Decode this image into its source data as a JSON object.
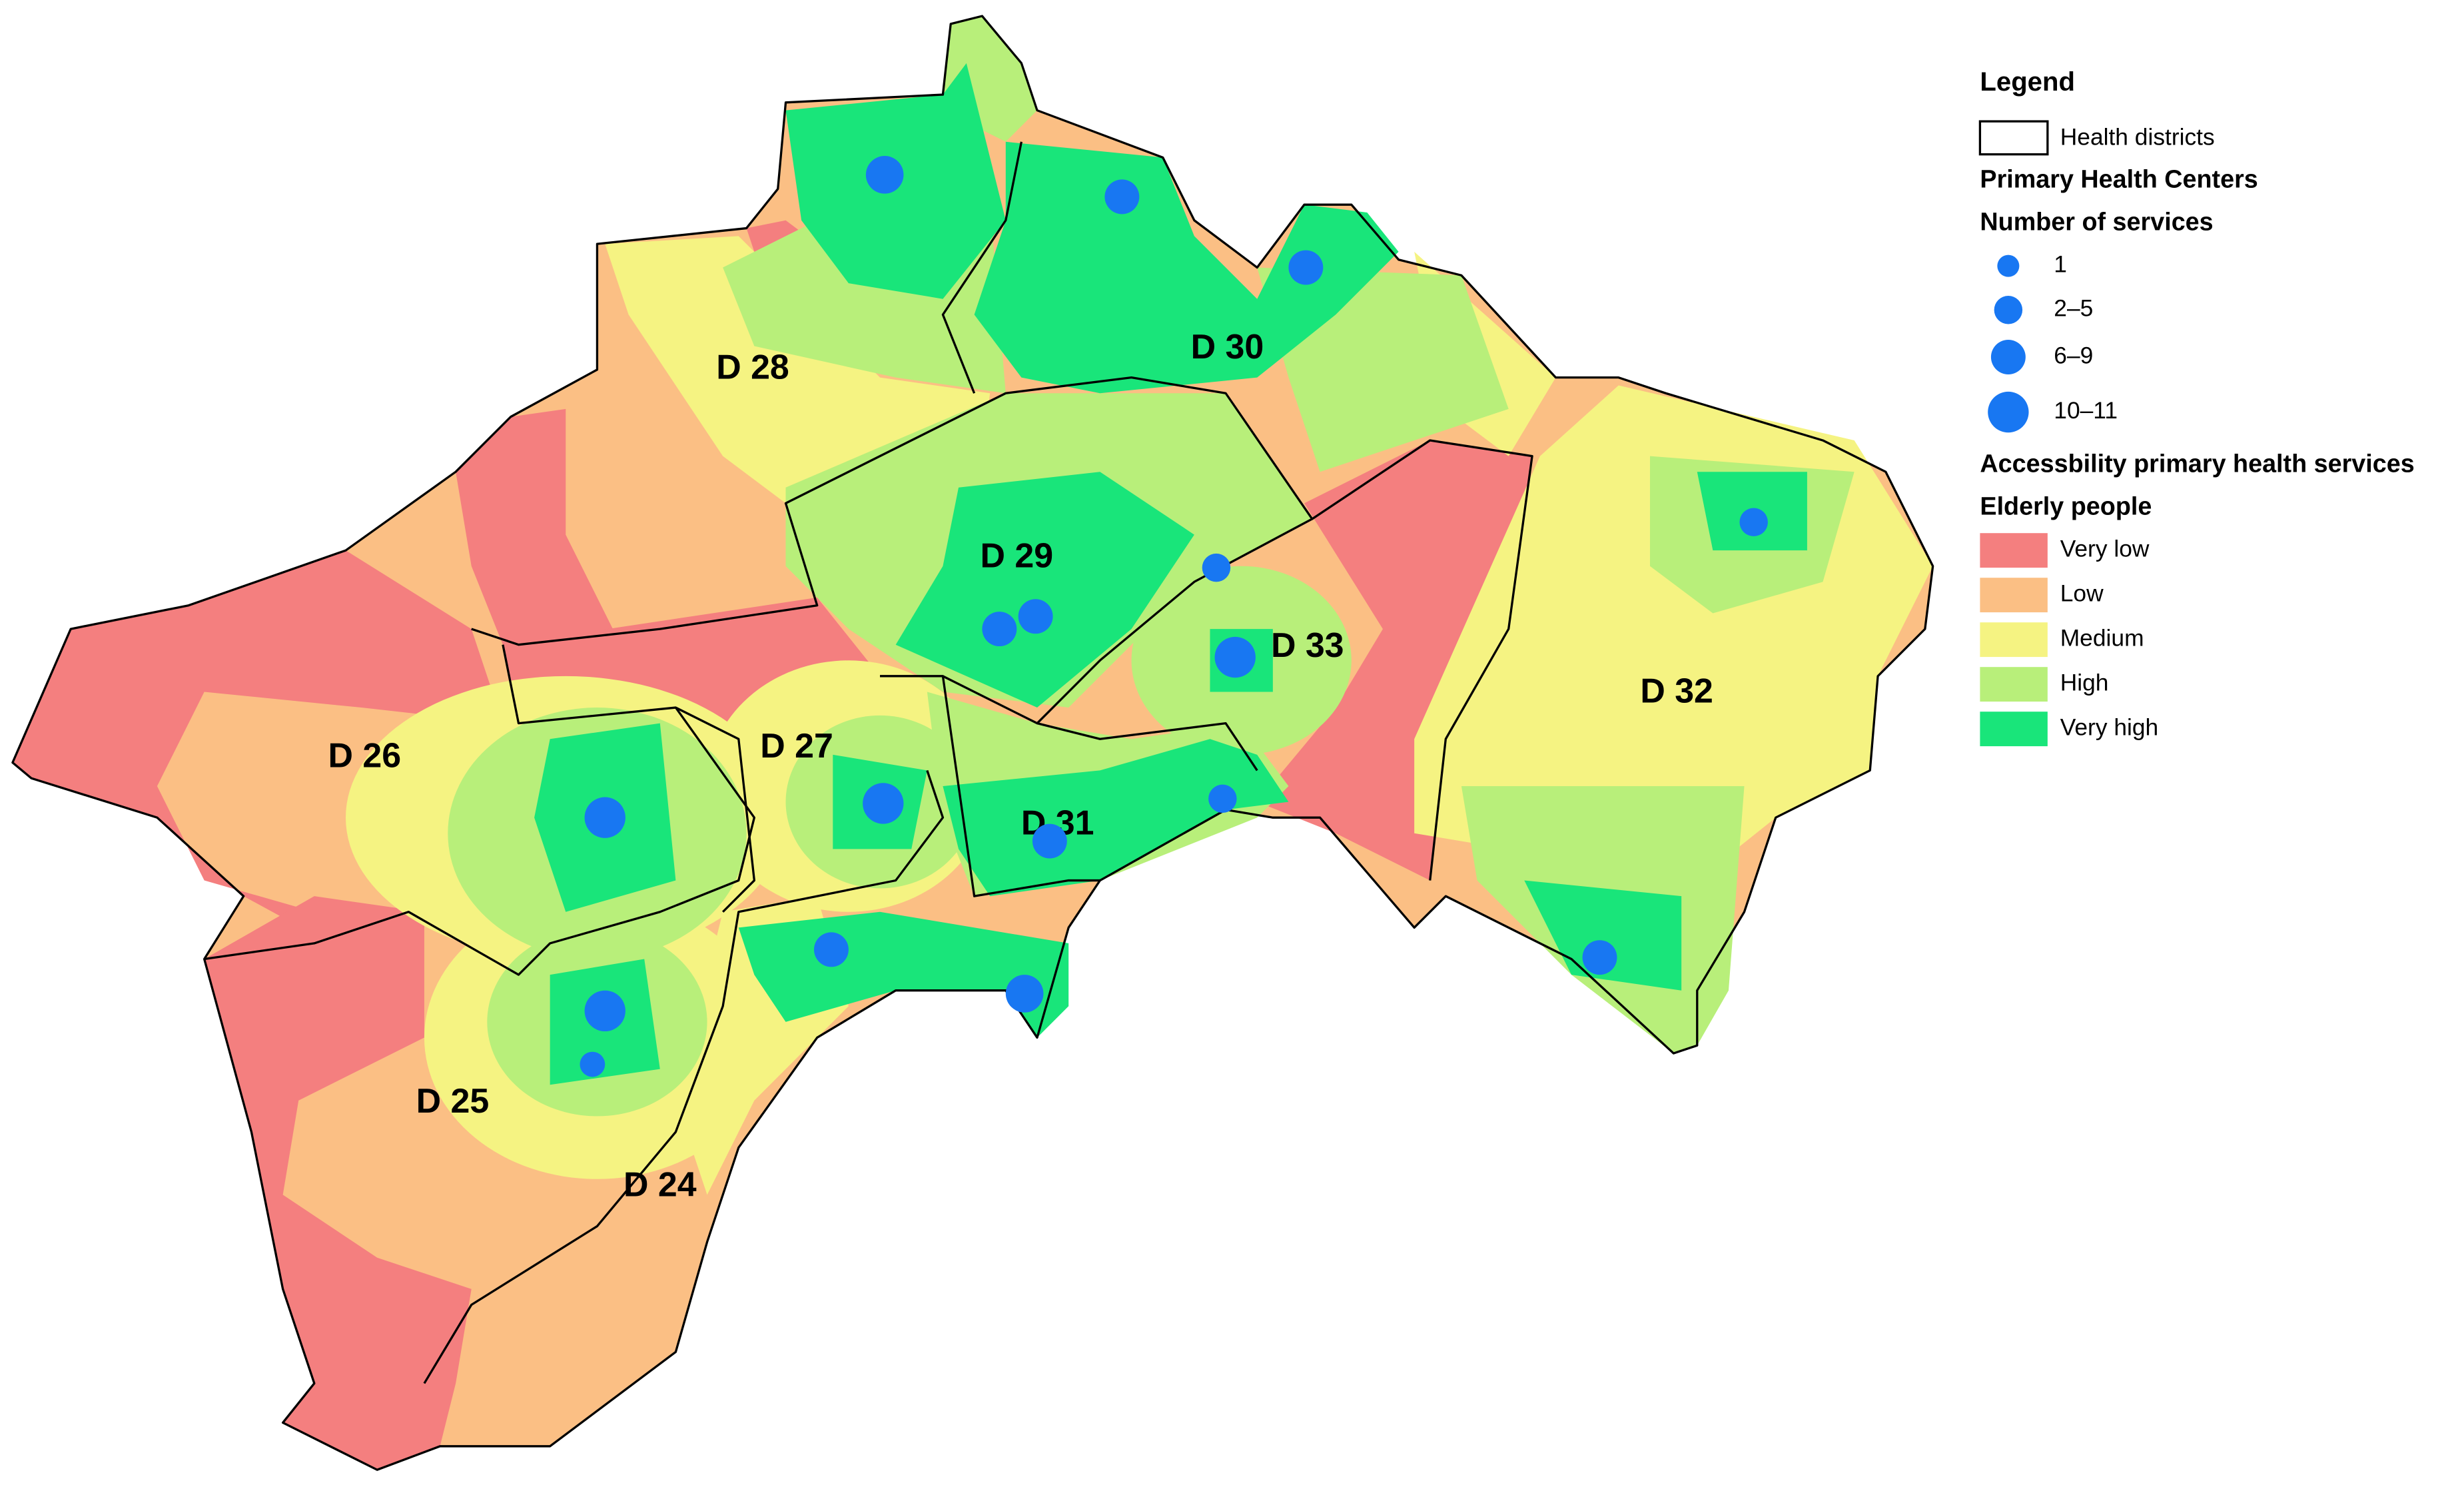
{
  "legend": {
    "title": "Legend",
    "districts": "Health districts",
    "centers_title": "Primary Health Centers",
    "services_title": "Number of services",
    "service_classes": [
      "1",
      "2–5",
      "6–9",
      "10–11"
    ],
    "accessibility_title": "Accessbility primary health services",
    "group": "Elderly people",
    "levels": [
      {
        "label": "Very low",
        "color": "#f47f7f"
      },
      {
        "label": "Low",
        "color": "#fbbf84"
      },
      {
        "label": "Medium",
        "color": "#f5f382"
      },
      {
        "label": "High",
        "color": "#b8ef7a"
      },
      {
        "label": "Very high",
        "color": "#19e57a"
      }
    ],
    "center_color": "#1877f2"
  },
  "districts": [
    "D 24",
    "D 25",
    "D 26",
    "D 27",
    "D 28",
    "D 29",
    "D 30",
    "D 31",
    "D 32",
    "D 33"
  ]
}
